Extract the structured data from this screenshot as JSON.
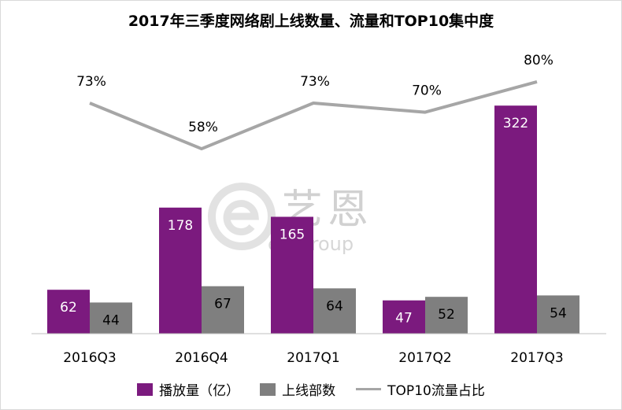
{
  "title": "2017年三季度网络剧上线数量、流量和TOP10集中度",
  "watermark": {
    "text": "艺恩",
    "sub": "entgroup"
  },
  "colors": {
    "plays": "#7b1a7e",
    "count": "#7f7f7f",
    "top10": "#a6a6a6"
  },
  "legend": [
    {
      "label": "播放量（亿）",
      "kind": "bar",
      "color": "#7b1a7e"
    },
    {
      "label": "上线部数",
      "kind": "bar",
      "color": "#7f7f7f"
    },
    {
      "label": "TOP10流量占比",
      "kind": "line",
      "color": "#a6a6a6"
    }
  ],
  "chart_data": {
    "type": "bar",
    "title": "2017年三季度网络剧上线数量、流量和TOP10集中度",
    "categories": [
      "2016Q3",
      "2016Q4",
      "2017Q1",
      "2017Q2",
      "2017Q3"
    ],
    "series": [
      {
        "name": "播放量（亿）",
        "type": "bar",
        "values": [
          62,
          178,
          165,
          47,
          322
        ]
      },
      {
        "name": "上线部数",
        "type": "bar",
        "values": [
          44,
          67,
          64,
          52,
          54
        ]
      },
      {
        "name": "TOP10流量占比",
        "type": "line",
        "values": [
          73,
          58,
          73,
          70,
          80
        ],
        "labels": [
          "73%",
          "58%",
          "73%",
          "70%",
          "80%"
        ]
      }
    ],
    "legend_position": "bottom",
    "grid": false
  }
}
